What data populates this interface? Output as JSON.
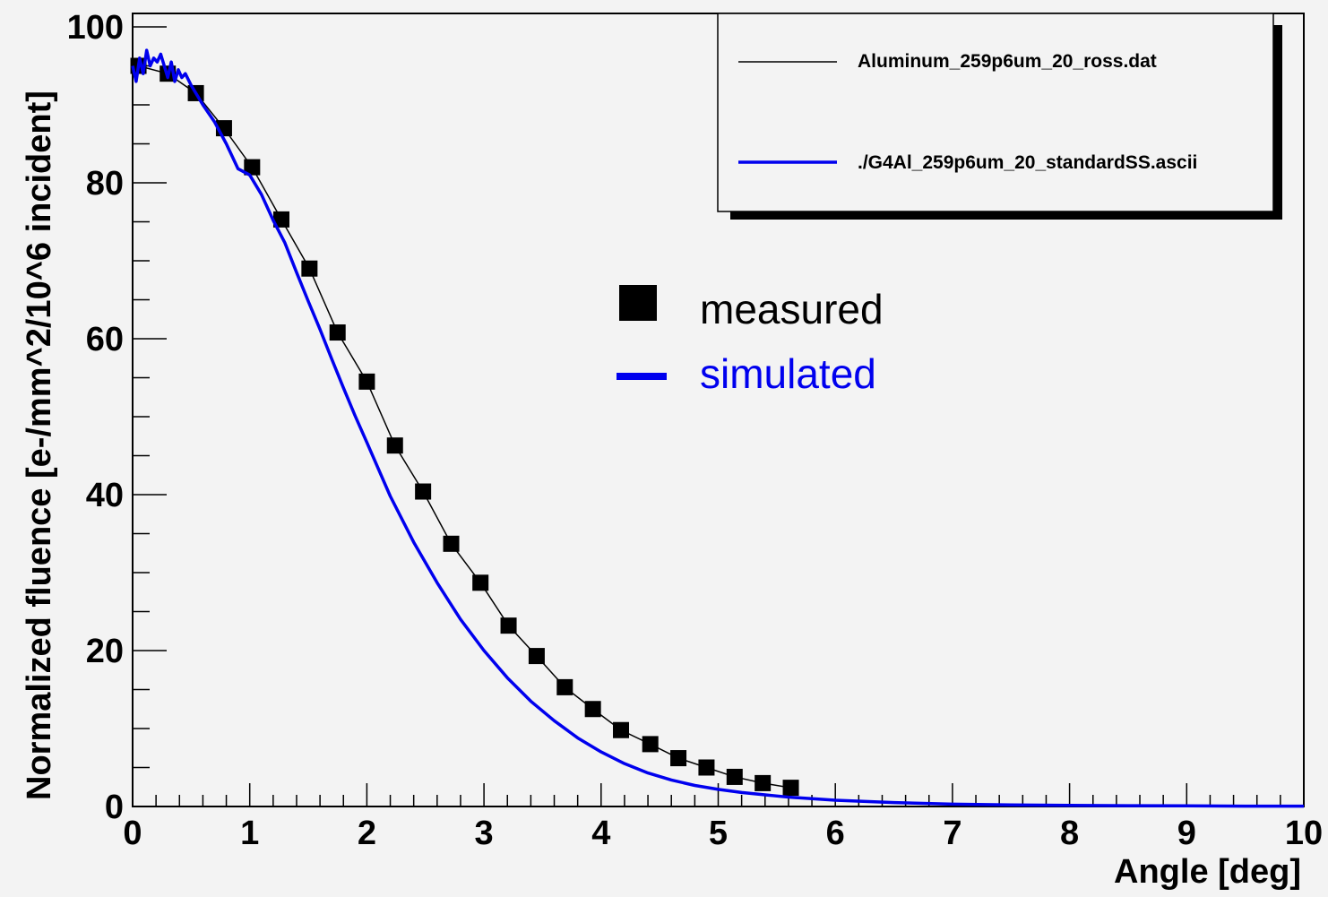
{
  "chart_data": {
    "type": "line",
    "xlabel": "Angle [deg]",
    "ylabel": "Normalized fluence [e-/mm^2/10^6 incident]",
    "xlim": [
      0,
      10
    ],
    "ylim": [
      0,
      100
    ],
    "x_major_ticks": [
      0,
      1,
      2,
      3,
      4,
      5,
      6,
      7,
      8,
      9,
      10
    ],
    "y_major_ticks": [
      0,
      20,
      40,
      60,
      80,
      100
    ],
    "x_tick_labels": [
      "0",
      "1",
      "2",
      "3",
      "4",
      "5",
      "6",
      "7",
      "8",
      "9",
      "10"
    ],
    "y_tick_labels": [
      "0",
      "20",
      "40",
      "60",
      "80",
      "100"
    ],
    "legend_placement": "top-right",
    "legend_entries": [
      {
        "label": "Aluminum_259p6um_20_ross.dat",
        "color": "#000000"
      },
      {
        "label": "./G4Al_259p6um_20_standardSS.ascii",
        "color": "#0000ee"
      }
    ],
    "annotations": [
      {
        "label": "measured",
        "color": "#000000",
        "marker": "square"
      },
      {
        "label": "simulated",
        "color": "#0000ee",
        "marker": "line"
      }
    ],
    "series": [
      {
        "name": "Aluminum_259p6um_20_ross.dat",
        "color": "#000000",
        "marker": "square",
        "x": [
          0.05,
          0.3,
          0.54,
          0.78,
          1.02,
          1.27,
          1.51,
          1.75,
          2.0,
          2.24,
          2.48,
          2.72,
          2.97,
          3.21,
          3.45,
          3.69,
          3.93,
          4.17,
          4.42,
          4.66,
          4.9,
          5.14,
          5.38,
          5.62
        ],
        "y": [
          95.0,
          94.0,
          91.5,
          87.0,
          82.0,
          75.3,
          69.0,
          60.8,
          54.5,
          46.3,
          40.4,
          33.7,
          28.7,
          23.2,
          19.3,
          15.3,
          12.5,
          9.8,
          8.0,
          6.2,
          5.0,
          3.8,
          3.0,
          2.4
        ]
      },
      {
        "name": "./G4Al_259p6um_20_standardSS.ascii",
        "color": "#0000ee",
        "x": [
          0.0,
          0.03,
          0.06,
          0.09,
          0.12,
          0.15,
          0.18,
          0.21,
          0.24,
          0.27,
          0.3,
          0.33,
          0.36,
          0.39,
          0.42,
          0.45,
          0.5,
          0.6,
          0.7,
          0.8,
          0.9,
          1.0,
          1.1,
          1.2,
          1.3,
          1.4,
          1.5,
          1.6,
          1.7,
          1.8,
          1.9,
          2.0,
          2.2,
          2.4,
          2.6,
          2.8,
          3.0,
          3.2,
          3.4,
          3.6,
          3.8,
          4.0,
          4.2,
          4.4,
          4.6,
          4.8,
          5.0,
          5.2,
          5.4,
          5.6,
          5.8,
          6.0,
          6.5,
          7.0,
          7.5,
          8.0,
          8.5,
          9.0,
          9.5,
          10.0
        ],
        "y": [
          95.0,
          93.0,
          96.0,
          94.0,
          97.0,
          95.0,
          96.0,
          95.5,
          96.5,
          95.0,
          93.5,
          95.5,
          93.0,
          94.5,
          93.5,
          94.0,
          92.5,
          90.0,
          87.8,
          85.0,
          81.8,
          81.0,
          78.5,
          75.2,
          72.3,
          68.5,
          64.8,
          61.2,
          57.4,
          53.7,
          50.1,
          46.7,
          39.8,
          33.9,
          28.7,
          24.0,
          20.0,
          16.5,
          13.5,
          11.0,
          8.8,
          7.0,
          5.5,
          4.3,
          3.4,
          2.7,
          2.2,
          1.8,
          1.5,
          1.2,
          1.0,
          0.8,
          0.5,
          0.3,
          0.2,
          0.15,
          0.1,
          0.08,
          0.05,
          0.04
        ]
      }
    ]
  }
}
